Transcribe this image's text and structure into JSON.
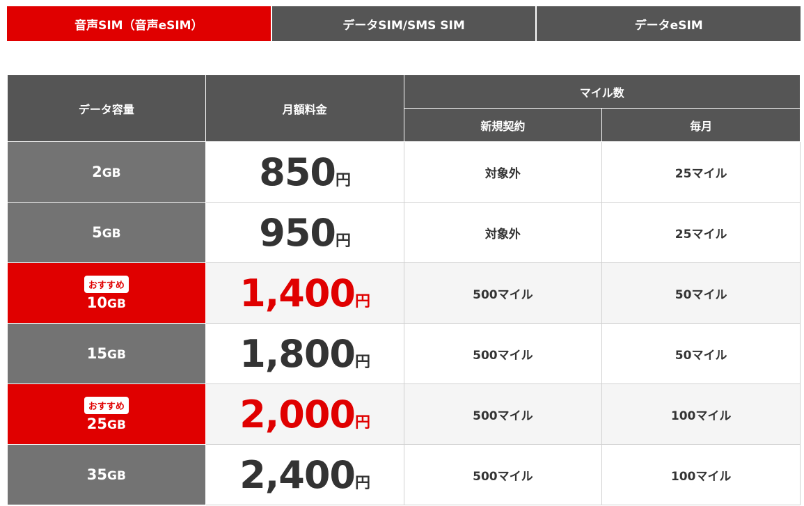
{
  "colors": {
    "accent": "#e00000",
    "header": "#555555",
    "gb_cell": "#737373"
  },
  "tabs": [
    {
      "label": "音声SIM（音声eSIM）",
      "active": true
    },
    {
      "label": "データSIM/SMS SIM",
      "active": false
    },
    {
      "label": "データeSIM",
      "active": false
    }
  ],
  "table": {
    "headers": {
      "data": "データ容量",
      "price": "月額料金",
      "miles": "マイル数",
      "new": "新規契約",
      "monthly": "毎月"
    },
    "badge": "おすすめ",
    "yen": "円",
    "gb_unit": "GB",
    "rows": [
      {
        "gb": "2",
        "price": "850",
        "new": "対象外",
        "monthly": "25マイル",
        "recommended": false
      },
      {
        "gb": "5",
        "price": "950",
        "new": "対象外",
        "monthly": "25マイル",
        "recommended": false
      },
      {
        "gb": "10",
        "price": "1,400",
        "new": "500マイル",
        "monthly": "50マイル",
        "recommended": true
      },
      {
        "gb": "15",
        "price": "1,800",
        "new": "500マイル",
        "monthly": "50マイル",
        "recommended": false
      },
      {
        "gb": "25",
        "price": "2,000",
        "new": "500マイル",
        "monthly": "100マイル",
        "recommended": true
      },
      {
        "gb": "35",
        "price": "2,400",
        "new": "500マイル",
        "monthly": "100マイル",
        "recommended": false
      }
    ]
  }
}
